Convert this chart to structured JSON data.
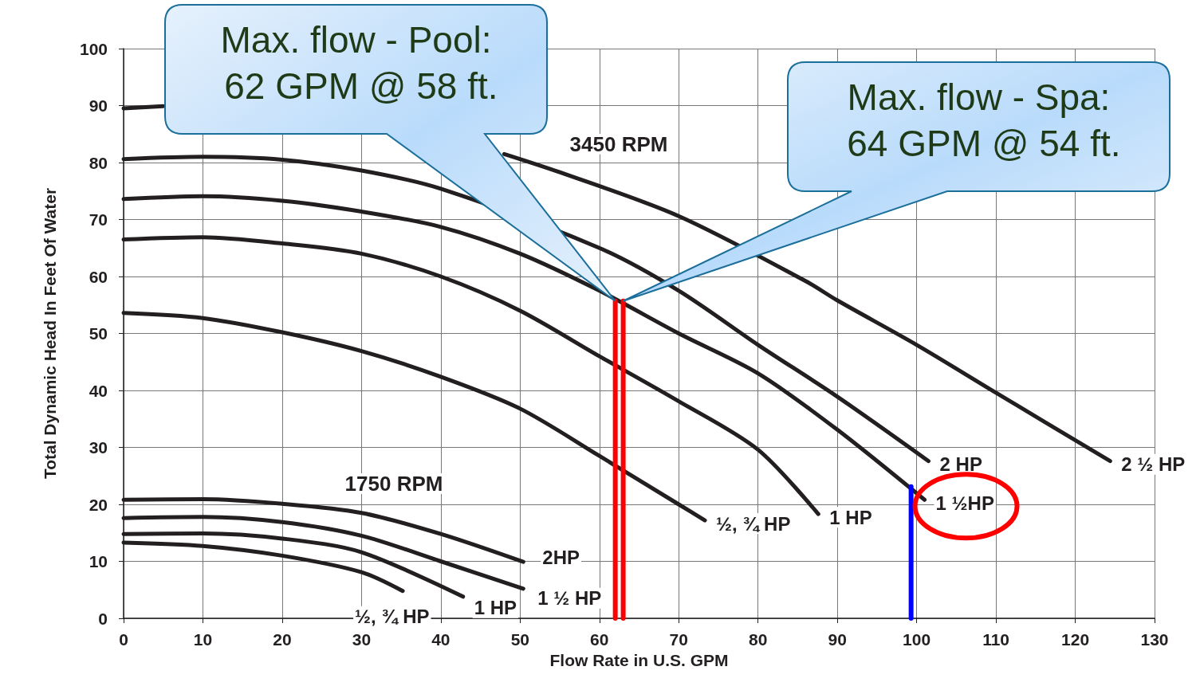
{
  "chart_data": {
    "type": "line",
    "xlabel": "Flow Rate in U.S. GPM",
    "ylabel": "Total Dynamic Head In Feet Of Water",
    "xlim": [
      0,
      130
    ],
    "xticks": [
      0,
      10,
      20,
      30,
      40,
      50,
      60,
      70,
      80,
      90,
      100,
      110,
      120,
      130
    ],
    "ylim": [
      0,
      100
    ],
    "yticks": [
      0,
      10,
      20,
      30,
      40,
      50,
      60,
      70,
      80,
      90,
      100
    ],
    "grid": true,
    "legend": false,
    "marker": "none",
    "line_style": "solid",
    "series": [
      {
        "name": "2 ½ HP",
        "color": "#231f20",
        "x": [
          0,
          5,
          20,
          48,
          55,
          70,
          86,
          90,
          100,
          110,
          124.4
        ],
        "values": [
          89.5,
          89.9,
          null,
          81.5,
          78.3,
          70.6,
          59.2,
          55.8,
          48,
          39.6,
          27.6
        ]
      },
      {
        "name": "2 HP",
        "color": "#231f20",
        "x": [
          0,
          10,
          20,
          30,
          40,
          60,
          70,
          80,
          90,
          101.5
        ],
        "values": [
          80.6,
          81,
          80.5,
          78.6,
          75.4,
          65,
          57.5,
          48,
          38.9,
          27.6
        ]
      },
      {
        "name": "1 ½HP",
        "color": "#231f20",
        "x": [
          0,
          10,
          20,
          30,
          40,
          50,
          60,
          70,
          80,
          90,
          101
        ],
        "values": [
          73.6,
          74.1,
          73.3,
          71.4,
          68.7,
          64,
          57.5,
          50,
          43,
          33.1,
          20.8
        ]
      },
      {
        "name": "1 HP",
        "color": "#231f20",
        "x": [
          0,
          10,
          20,
          30,
          40,
          50,
          60,
          70,
          80,
          87.6
        ],
        "values": [
          66.5,
          66.9,
          65.8,
          64,
          60,
          54,
          46,
          38.1,
          29.6,
          18.3
        ]
      },
      {
        "name": "½, ¾ HP",
        "color": "#231f20",
        "x": [
          0,
          10,
          20,
          30,
          40,
          50,
          60,
          70,
          73.3
        ],
        "values": [
          53.6,
          52.7,
          50.2,
          46.9,
          42.4,
          36.8,
          28.5,
          20,
          17.2
        ]
      },
      {
        "name": "2HP",
        "color": "#231f20",
        "x": [
          0,
          10,
          20,
          30,
          40,
          50.4
        ],
        "values": [
          20.8,
          20.9,
          20.1,
          18.5,
          14.8,
          9.9
        ]
      },
      {
        "name": "1 ½ HP",
        "color": "#231f20",
        "x": [
          0,
          10,
          20,
          30,
          40,
          50.4
        ],
        "values": [
          17.6,
          17.8,
          16.9,
          14.5,
          10,
          5.2
        ]
      },
      {
        "name": "1 HP",
        "color": "#231f20",
        "x": [
          0,
          10,
          20,
          30,
          42.8
        ],
        "values": [
          14.8,
          14.9,
          14,
          11.6,
          3.8
        ]
      },
      {
        "name": "½, ¾ HP",
        "color": "#231f20",
        "x": [
          0,
          10,
          20,
          30,
          35.2
        ],
        "values": [
          13.3,
          12.7,
          11,
          8.1,
          4.8
        ]
      },
      {
        "color": "#ff0000",
        "x": [
          62,
          62
        ],
        "values": [
          0,
          55.7
        ]
      },
      {
        "color": "#ff0000",
        "x": [
          63,
          63
        ],
        "values": [
          0,
          55.7
        ]
      },
      {
        "color": "#0000ff",
        "x": [
          99.3,
          99.3
        ],
        "values": [
          0,
          23.1
        ]
      }
    ],
    "annotations": [
      "Max. flow - Pool:\n 62 GPM @ 58 ft.",
      "Max. flow - Spa:\n 64 GPM @ 54 ft.",
      "3450 RPM",
      "1750 RPM"
    ]
  }
}
